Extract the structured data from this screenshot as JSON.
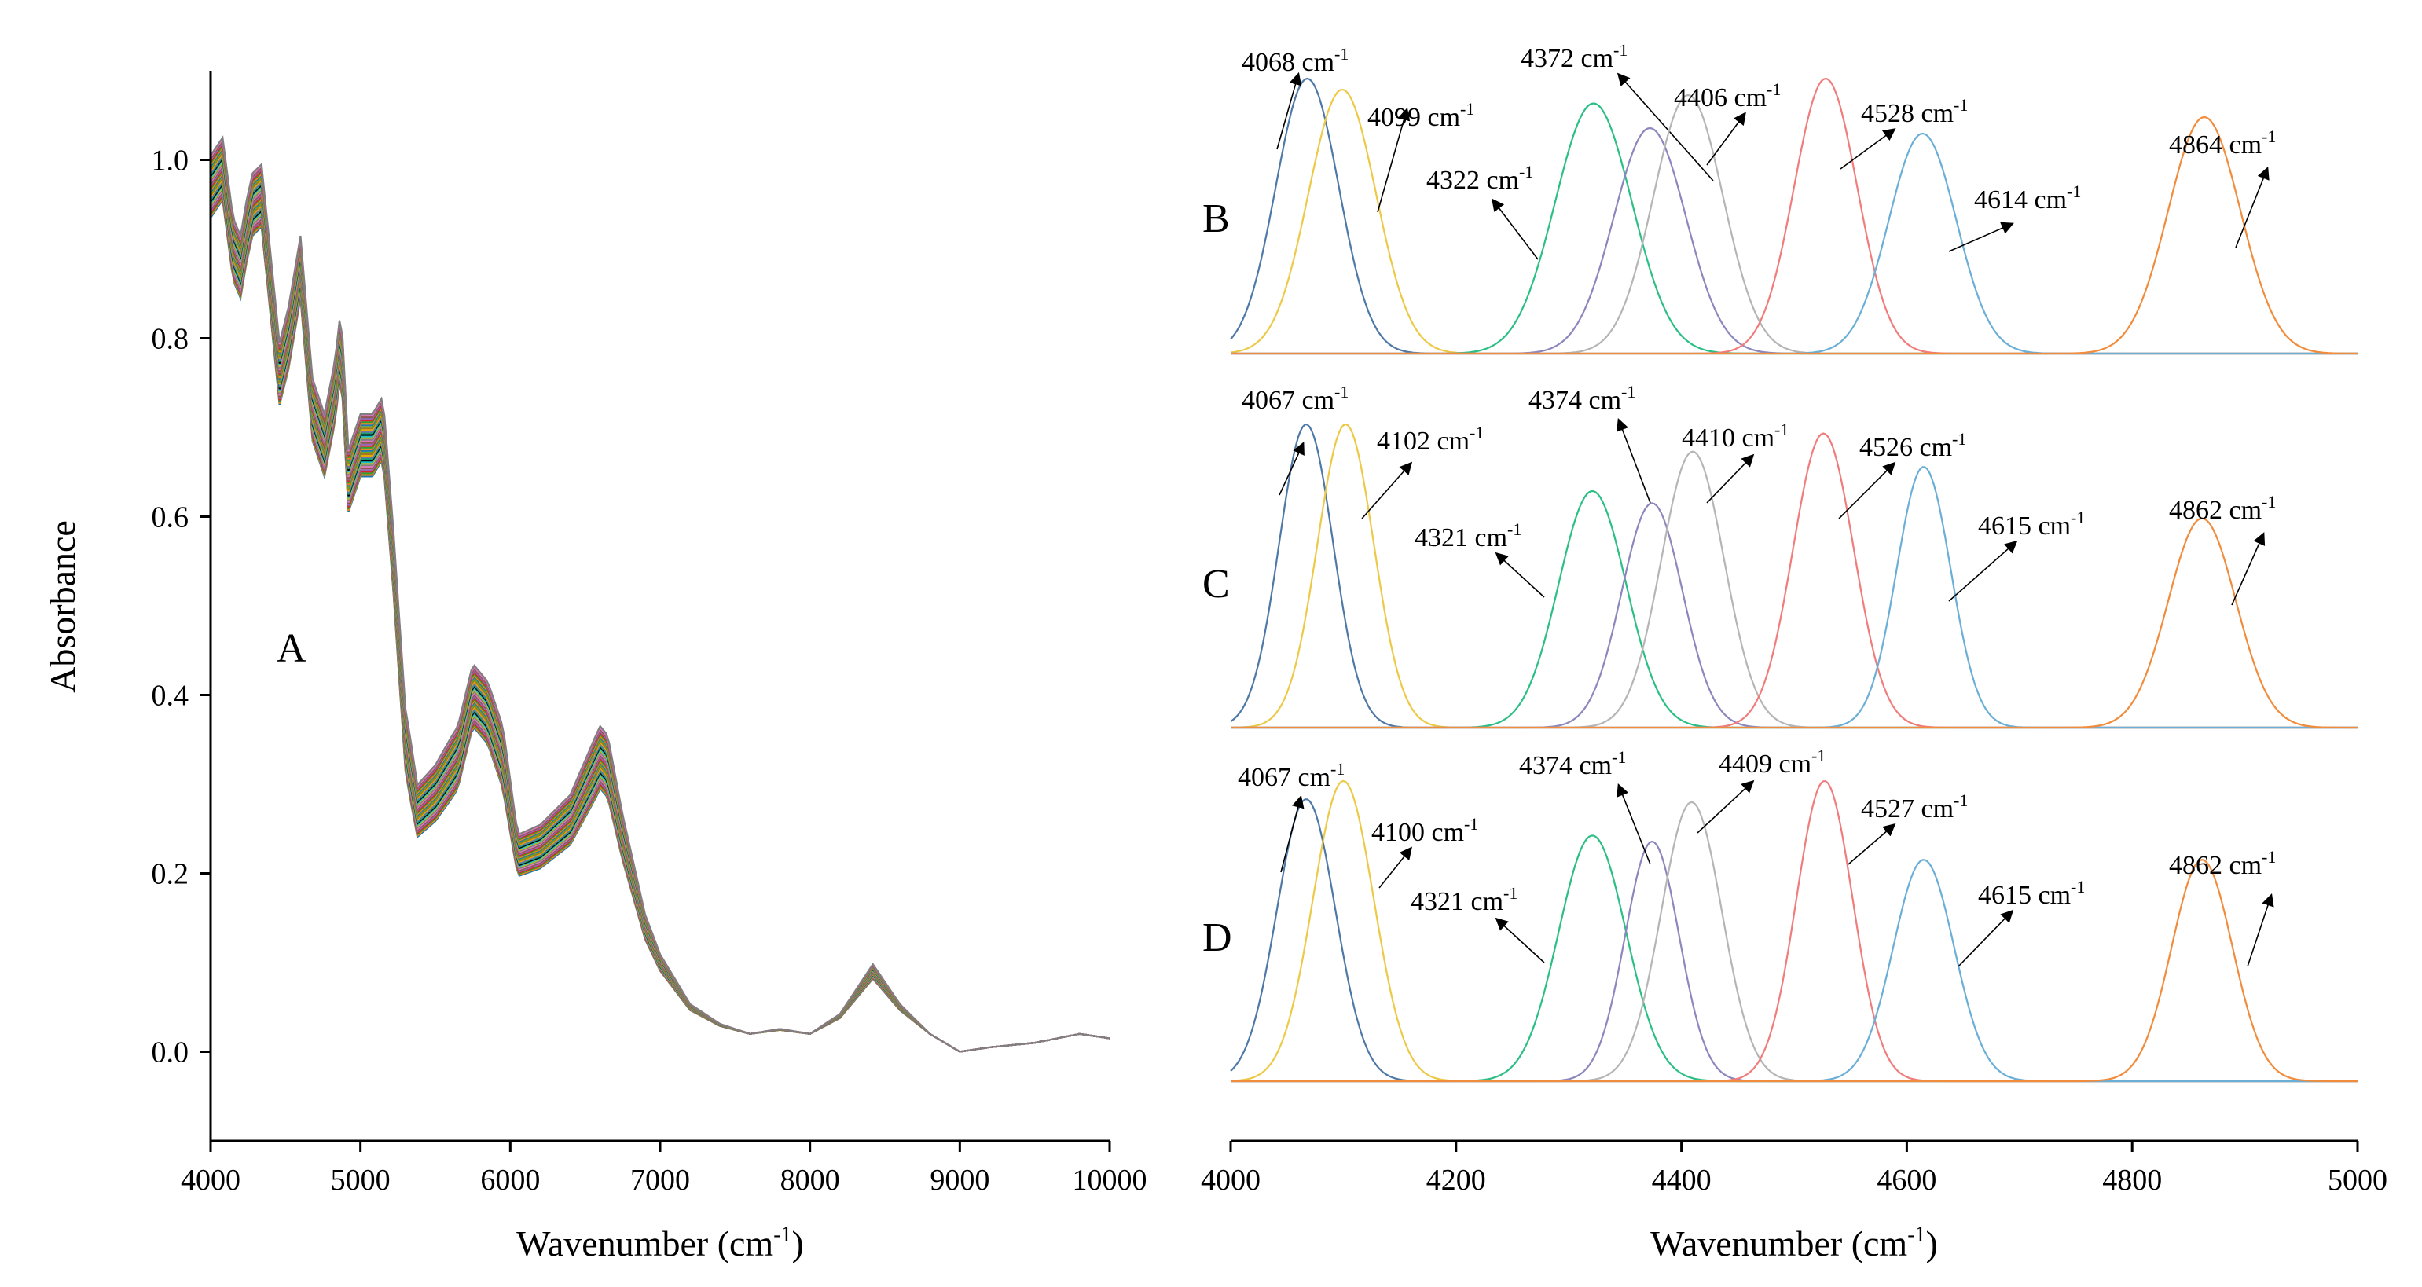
{
  "panel_a": {
    "letter": "A",
    "ylabel": "Absorbance",
    "xlabel_main": "Wavenumber (cm",
    "xlabel_sup": "-1",
    "xlabel_close": ")"
  },
  "panel_fit": {
    "xlabel_main": "Wavenumber (cm",
    "xlabel_sup": "-1",
    "xlabel_close": ")"
  },
  "chart_data": [
    {
      "type": "line",
      "panel": "A",
      "title": "",
      "xlabel": "Wavenumber (cm-1)",
      "ylabel": "Absorbance",
      "xlim": [
        4000,
        10000
      ],
      "ylim": [
        -0.1,
        1.1
      ],
      "xticks": [
        "4000",
        "5000",
        "6000",
        "7000",
        "8000",
        "9000",
        "10000"
      ],
      "yticks": [
        "0.0",
        "0.2",
        "0.4",
        "0.6",
        "0.8",
        "1.0"
      ],
      "series_count": 40,
      "spread": [
        0.0,
        0.07
      ],
      "colors": [
        "#1f77b4",
        "#ff7f0e",
        "#2ca02c",
        "#d62728",
        "#9467bd",
        "#8c564b",
        "#e377c2",
        "#7f7f7f",
        "#bcbd22",
        "#17becf",
        "#000000",
        "#1b9e77",
        "#7570b3",
        "#e6ab02",
        "#a6761d",
        "#66a61e"
      ],
      "mean_spectrum": {
        "x": [
          4000,
          4080,
          4150,
          4200,
          4240,
          4280,
          4340,
          4400,
          4460,
          4520,
          4600,
          4680,
          4760,
          4830,
          4870,
          4920,
          5000,
          5080,
          5150,
          5220,
          5300,
          5380,
          5500,
          5650,
          5750,
          5850,
          5950,
          6050,
          6200,
          6400,
          6600,
          6650,
          6750,
          6900,
          7000,
          7200,
          7400,
          7600,
          7800,
          8000,
          8200,
          8420,
          8600,
          8800,
          9000,
          9200,
          9500,
          9800,
          10000
        ],
        "y": [
          0.97,
          0.99,
          0.9,
          0.88,
          0.92,
          0.95,
          0.96,
          0.86,
          0.76,
          0.8,
          0.88,
          0.72,
          0.68,
          0.74,
          0.8,
          0.64,
          0.68,
          0.68,
          0.7,
          0.55,
          0.35,
          0.27,
          0.29,
          0.33,
          0.4,
          0.38,
          0.33,
          0.22,
          0.23,
          0.26,
          0.33,
          0.32,
          0.24,
          0.14,
          0.1,
          0.05,
          0.03,
          0.02,
          0.025,
          0.02,
          0.04,
          0.09,
          0.05,
          0.02,
          0.0,
          0.005,
          0.01,
          0.02,
          0.015
        ]
      }
    },
    {
      "type": "line",
      "panel": "B",
      "letter": "B",
      "xlim": [
        4000,
        5000
      ],
      "xticks": [
        "4000",
        "4200",
        "4400",
        "4600",
        "4800",
        "5000"
      ],
      "peaks": [
        {
          "center": 4068,
          "height": 1.0,
          "width": 28,
          "color": "#4e79a7",
          "label": "4068 cm",
          "sup": "-1"
        },
        {
          "center": 4099,
          "height": 0.96,
          "width": 30,
          "color": "#edc948",
          "label": "4099 cm",
          "sup": "-1"
        },
        {
          "center": 4322,
          "height": 0.91,
          "width": 34,
          "color": "#2bbf85",
          "label": "4322 cm",
          "sup": "-1"
        },
        {
          "center": 4372,
          "height": 0.82,
          "width": 32,
          "color": "#8c87bd",
          "label": "4372 cm",
          "sup": "-1"
        },
        {
          "center": 4406,
          "height": 0.94,
          "width": 31,
          "color": "#b5b5b5",
          "label": "4406 cm",
          "sup": "-1"
        },
        {
          "center": 4528,
          "height": 1.0,
          "width": 28,
          "color": "#f07c7c",
          "label": "4528 cm",
          "sup": "-1"
        },
        {
          "center": 4614,
          "height": 0.8,
          "width": 30,
          "color": "#6baed6",
          "label": "4614 cm",
          "sup": "-1"
        },
        {
          "center": 4864,
          "height": 0.86,
          "width": 32,
          "color": "#f08c3c",
          "label": "4864 cm",
          "sup": "-1"
        }
      ]
    },
    {
      "type": "line",
      "panel": "C",
      "letter": "C",
      "xlim": [
        4000,
        5000
      ],
      "peaks": [
        {
          "center": 4067,
          "height": 1.0,
          "width": 24,
          "color": "#4e79a7",
          "label": "4067 cm",
          "sup": "-1"
        },
        {
          "center": 4102,
          "height": 1.0,
          "width": 25,
          "color": "#edc948",
          "label": "4102 cm",
          "sup": "-1"
        },
        {
          "center": 4321,
          "height": 0.78,
          "width": 30,
          "color": "#2bbf85",
          "label": "4321 cm",
          "sup": "-1"
        },
        {
          "center": 4374,
          "height": 0.74,
          "width": 27,
          "color": "#8c87bd",
          "label": "4374 cm",
          "sup": "-1"
        },
        {
          "center": 4410,
          "height": 0.91,
          "width": 28,
          "color": "#b5b5b5",
          "label": "4410 cm",
          "sup": "-1"
        },
        {
          "center": 4526,
          "height": 0.97,
          "width": 27,
          "color": "#f07c7c",
          "label": "4526 cm",
          "sup": "-1"
        },
        {
          "center": 4615,
          "height": 0.86,
          "width": 24,
          "color": "#6baed6",
          "label": "4615 cm",
          "sup": "-1"
        },
        {
          "center": 4862,
          "height": 0.69,
          "width": 30,
          "color": "#f08c3c",
          "label": "4862 cm",
          "sup": "-1"
        }
      ]
    },
    {
      "type": "line",
      "panel": "D",
      "letter": "D",
      "xlim": [
        4000,
        5000
      ],
      "peaks": [
        {
          "center": 4067,
          "height": 0.93,
          "width": 26,
          "color": "#4e79a7",
          "label": "4067 cm",
          "sup": "-1"
        },
        {
          "center": 4100,
          "height": 0.99,
          "width": 27,
          "color": "#edc948",
          "label": "4100 cm",
          "sup": "-1"
        },
        {
          "center": 4321,
          "height": 0.81,
          "width": 30,
          "color": "#2bbf85",
          "label": "4321 cm",
          "sup": "-1"
        },
        {
          "center": 4374,
          "height": 0.79,
          "width": 24,
          "color": "#8c87bd",
          "label": "4374 cm",
          "sup": "-1"
        },
        {
          "center": 4409,
          "height": 0.92,
          "width": 27,
          "color": "#b5b5b5",
          "label": "4409 cm",
          "sup": "-1"
        },
        {
          "center": 4527,
          "height": 0.99,
          "width": 25,
          "color": "#f07c7c",
          "label": "4527 cm",
          "sup": "-1"
        },
        {
          "center": 4615,
          "height": 0.73,
          "width": 27,
          "color": "#6baed6",
          "label": "4615 cm",
          "sup": "-1"
        },
        {
          "center": 4862,
          "height": 0.73,
          "width": 27,
          "color": "#f08c3c",
          "label": "4862 cm",
          "sup": "-1"
        }
      ]
    }
  ]
}
